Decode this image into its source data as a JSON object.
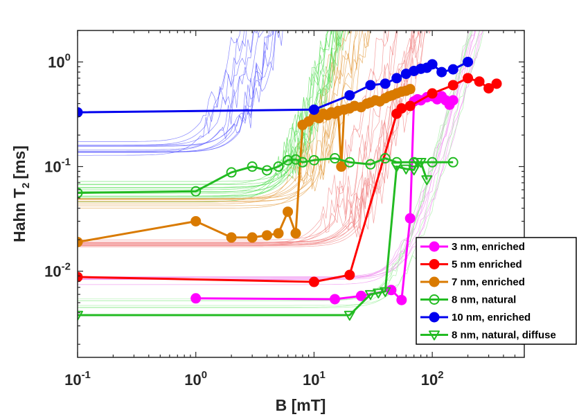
{
  "chart_data": {
    "type": "line",
    "title": "",
    "xlabel": "B [mT]",
    "ylabel_main": "Hahn T",
    "ylabel_sub": "2",
    "ylabel_unit": "[ms]",
    "xscale": "log",
    "yscale": "log",
    "xlim": [
      0.1,
      600
    ],
    "ylim": [
      0.0015,
      2
    ],
    "x_ticks": [
      {
        "value": 0.1,
        "base": "10",
        "exp": "-1"
      },
      {
        "value": 1,
        "base": "10",
        "exp": "0"
      },
      {
        "value": 10,
        "base": "10",
        "exp": "1"
      },
      {
        "value": 100,
        "base": "10",
        "exp": "2"
      }
    ],
    "y_ticks": [
      {
        "value": 0.01,
        "base": "10",
        "exp": "-2"
      },
      {
        "value": 0.1,
        "base": "10",
        "exp": "-1"
      },
      {
        "value": 1,
        "base": "10",
        "exp": "0"
      }
    ],
    "legend_position": "bottom-right",
    "series": [
      {
        "name": "3 nm, enriched",
        "color": "#ff00ff",
        "marker": "filled-circle",
        "x": [
          1,
          15,
          25,
          45,
          55,
          65,
          70,
          75,
          80,
          90,
          100,
          110,
          120,
          130,
          140,
          150
        ],
        "y": [
          0.0055,
          0.0054,
          0.0058,
          0.0066,
          0.0053,
          0.032,
          0.42,
          0.44,
          0.43,
          0.46,
          0.47,
          0.44,
          0.47,
          0.43,
          0.39,
          0.43
        ]
      },
      {
        "name": "5 nm enriched",
        "color": "#ff0000",
        "marker": "filled-circle",
        "x": [
          0.1,
          10,
          20,
          50,
          55,
          65,
          100,
          150,
          200,
          250,
          300,
          350
        ],
        "y": [
          0.0088,
          0.0079,
          0.0092,
          0.32,
          0.36,
          0.38,
          0.5,
          0.6,
          0.7,
          0.65,
          0.56,
          0.62
        ]
      },
      {
        "name": "7 nm, enriched",
        "color": "#d97a00",
        "marker": "filled-circle",
        "x": [
          0.1,
          1,
          2,
          3,
          4,
          5,
          6,
          7,
          8,
          9,
          10,
          11,
          12,
          13,
          14,
          15,
          16,
          17,
          18,
          20,
          22,
          25,
          28,
          30,
          33,
          36,
          40,
          43,
          46,
          50,
          55,
          60,
          65
        ],
        "y": [
          0.019,
          0.03,
          0.021,
          0.021,
          0.022,
          0.023,
          0.037,
          0.023,
          0.25,
          0.27,
          0.3,
          0.29,
          0.32,
          0.31,
          0.33,
          0.32,
          0.34,
          0.1,
          0.35,
          0.36,
          0.38,
          0.37,
          0.4,
          0.41,
          0.43,
          0.42,
          0.45,
          0.47,
          0.48,
          0.5,
          0.52,
          0.53,
          0.55
        ]
      },
      {
        "name": "8 nm, natural",
        "color": "#22bb22",
        "marker": "open-circle",
        "x": [
          0.1,
          1,
          2,
          3,
          4,
          5,
          6,
          7,
          8,
          10,
          15,
          20,
          30,
          40,
          50,
          70,
          100,
          150
        ],
        "y": [
          0.056,
          0.058,
          0.088,
          0.1,
          0.092,
          0.1,
          0.115,
          0.117,
          0.11,
          0.115,
          0.12,
          0.11,
          0.105,
          0.12,
          0.11,
          0.11,
          0.11,
          0.11
        ]
      },
      {
        "name": "10 nm, enriched",
        "color": "#0000ee",
        "marker": "filled-circle",
        "x": [
          0.1,
          10,
          20,
          30,
          40,
          50,
          60,
          70,
          80,
          90,
          100,
          120,
          150,
          200
        ],
        "y": [
          0.33,
          0.35,
          0.48,
          0.6,
          0.62,
          0.7,
          0.77,
          0.82,
          0.86,
          0.88,
          0.95,
          0.8,
          0.85,
          1.0
        ]
      },
      {
        "name": "8 nm, natural, diffuse",
        "color": "#22bb22",
        "marker": "open-triangle-down",
        "x": [
          0.1,
          20,
          30,
          35,
          40,
          50,
          60,
          70,
          75,
          80,
          90
        ],
        "y": [
          0.0038,
          0.0038,
          0.006,
          0.0062,
          0.0064,
          0.1,
          0.095,
          0.093,
          0.11,
          0.11,
          0.075
        ]
      }
    ]
  }
}
